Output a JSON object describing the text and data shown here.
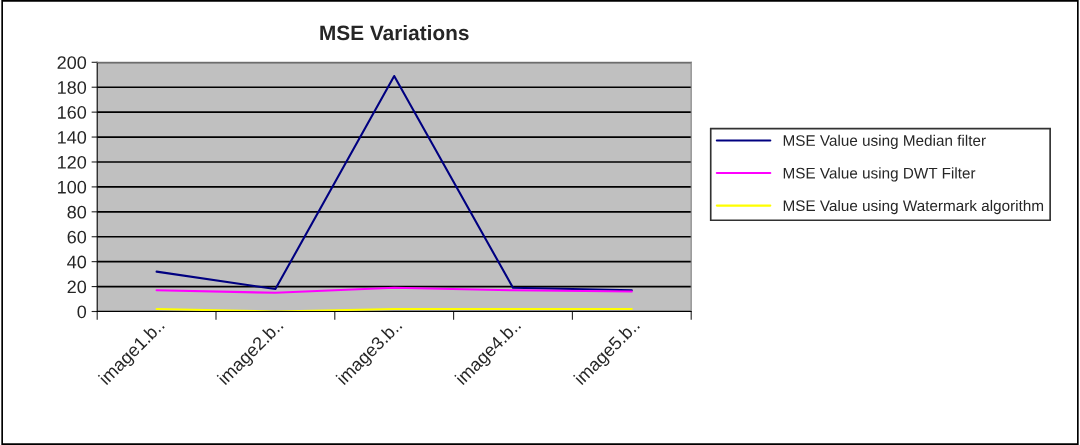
{
  "chart_data": {
    "type": "line",
    "title": "MSE Variations",
    "categories": [
      "image1.b..",
      "image2.b..",
      "image3.b..",
      "image4.b..",
      "image5.b.."
    ],
    "series": [
      {
        "name": "MSE Value using Median filter",
        "color": "#000080",
        "values": [
          32,
          18,
          189,
          19,
          17
        ]
      },
      {
        "name": "MSE Value using DWT Filter",
        "color": "#ff00ff",
        "values": [
          17,
          15,
          19,
          17,
          16
        ]
      },
      {
        "name": "MSE Value using Watermark algorithm",
        "color": "#ffff00",
        "values": [
          2,
          0,
          2,
          2,
          2
        ]
      }
    ],
    "ylim": [
      0,
      200
    ],
    "yticks": [
      0,
      20,
      40,
      60,
      80,
      100,
      120,
      140,
      160,
      180,
      200
    ],
    "grid": "y",
    "legend": "right",
    "marker": "none",
    "line_style": "solid"
  }
}
